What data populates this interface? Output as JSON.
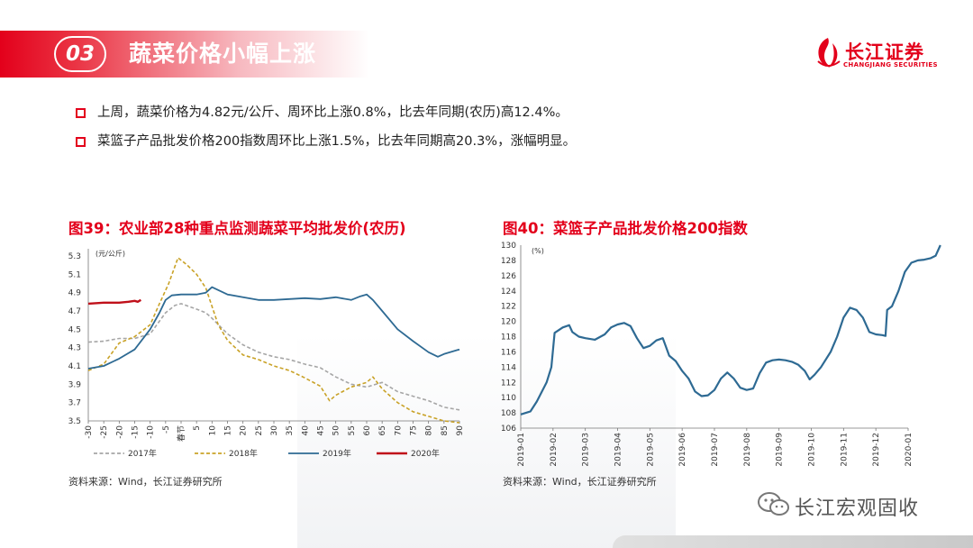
{
  "header": {
    "section_number": "03",
    "title": "蔬菜价格小幅上涨",
    "logo_cn": "长江证券",
    "logo_en": "CHANGJIANG SECURITIES"
  },
  "bullets": [
    "上周，蔬菜价格为4.82元/公斤、周环比上涨0.8%，比去年同期(农历)高12.4%。",
    "菜篮子产品批发价格200指数周环比上涨1.5%，比去年同期高20.3%，涨幅明显。"
  ],
  "figures": {
    "left": {
      "title": "图39：农业部28种重点监测蔬菜平均批发价(农历)",
      "source": "资料来源：Wind，长江证券研究所"
    },
    "right": {
      "title": "图40：菜篮子产品批发价格200指数",
      "source": "资料来源：Wind，长江证券研究所"
    }
  },
  "watermark": "长江宏观固收",
  "colors": {
    "brand_red": "#e3001b",
    "series_2017": "#a6a6a6",
    "series_2018": "#c9a227",
    "series_2019": "#2e6a93",
    "series_2020": "#c0101a"
  },
  "chart_data": [
    {
      "type": "line",
      "unit": "(元/公斤)",
      "ylim": [
        3.5,
        5.3
      ],
      "yticks": [
        3.5,
        3.7,
        3.9,
        4.1,
        4.3,
        4.5,
        4.7,
        4.9,
        5.1,
        5.3
      ],
      "xlim": [
        -30,
        90
      ],
      "xticks": [
        "-30",
        "-25",
        "-20",
        "-15",
        "-10",
        "-5",
        "春节",
        "5",
        "10",
        "15",
        "20",
        "25",
        "30",
        "35",
        "40",
        "45",
        "50",
        "55",
        "60",
        "65",
        "70",
        "75",
        "80",
        "85",
        "90"
      ],
      "legend": "bottom",
      "series": [
        {
          "name": "2017年",
          "style": "dashed",
          "points": [
            [
              -30,
              4.36
            ],
            [
              -25,
              4.37
            ],
            [
              -20,
              4.4
            ],
            [
              -15,
              4.4
            ],
            [
              -10,
              4.45
            ],
            [
              -5,
              4.68
            ],
            [
              -2,
              4.76
            ],
            [
              0,
              4.78
            ],
            [
              5,
              4.72
            ],
            [
              8,
              4.68
            ],
            [
              10,
              4.62
            ],
            [
              15,
              4.45
            ],
            [
              20,
              4.33
            ],
            [
              25,
              4.25
            ],
            [
              30,
              4.2
            ],
            [
              35,
              4.17
            ],
            [
              40,
              4.12
            ],
            [
              45,
              4.08
            ],
            [
              50,
              3.98
            ],
            [
              55,
              3.9
            ],
            [
              60,
              3.87
            ],
            [
              65,
              3.92
            ],
            [
              70,
              3.82
            ],
            [
              75,
              3.77
            ],
            [
              80,
              3.72
            ],
            [
              85,
              3.65
            ],
            [
              90,
              3.62
            ]
          ]
        },
        {
          "name": "2018年",
          "style": "dashed",
          "points": [
            [
              -30,
              4.05
            ],
            [
              -25,
              4.12
            ],
            [
              -20,
              4.35
            ],
            [
              -15,
              4.42
            ],
            [
              -10,
              4.55
            ],
            [
              -7,
              4.78
            ],
            [
              -4,
              5.0
            ],
            [
              -1,
              5.28
            ],
            [
              2,
              5.2
            ],
            [
              5,
              5.1
            ],
            [
              8,
              4.95
            ],
            [
              10,
              4.75
            ],
            [
              12,
              4.55
            ],
            [
              15,
              4.38
            ],
            [
              20,
              4.22
            ],
            [
              25,
              4.17
            ],
            [
              30,
              4.1
            ],
            [
              35,
              4.05
            ],
            [
              40,
              3.97
            ],
            [
              45,
              3.88
            ],
            [
              48,
              3.72
            ],
            [
              50,
              3.78
            ],
            [
              55,
              3.87
            ],
            [
              60,
              3.92
            ],
            [
              62,
              3.98
            ],
            [
              65,
              3.85
            ],
            [
              70,
              3.7
            ],
            [
              75,
              3.6
            ],
            [
              80,
              3.55
            ],
            [
              85,
              3.5
            ],
            [
              90,
              3.48
            ]
          ]
        },
        {
          "name": "2019年",
          "style": "solid",
          "points": [
            [
              -30,
              4.07
            ],
            [
              -25,
              4.1
            ],
            [
              -20,
              4.18
            ],
            [
              -15,
              4.28
            ],
            [
              -10,
              4.5
            ],
            [
              -7,
              4.68
            ],
            [
              -5,
              4.82
            ],
            [
              -3,
              4.87
            ],
            [
              0,
              4.88
            ],
            [
              5,
              4.88
            ],
            [
              8,
              4.9
            ],
            [
              10,
              4.96
            ],
            [
              15,
              4.88
            ],
            [
              20,
              4.85
            ],
            [
              25,
              4.82
            ],
            [
              30,
              4.82
            ],
            [
              35,
              4.83
            ],
            [
              40,
              4.84
            ],
            [
              45,
              4.83
            ],
            [
              50,
              4.85
            ],
            [
              55,
              4.82
            ],
            [
              58,
              4.86
            ],
            [
              60,
              4.88
            ],
            [
              62,
              4.82
            ],
            [
              65,
              4.7
            ],
            [
              70,
              4.5
            ],
            [
              75,
              4.37
            ],
            [
              80,
              4.25
            ],
            [
              83,
              4.2
            ],
            [
              85,
              4.23
            ],
            [
              90,
              4.28
            ]
          ]
        },
        {
          "name": "2020年",
          "style": "solid",
          "points": [
            [
              -30,
              4.78
            ],
            [
              -25,
              4.79
            ],
            [
              -20,
              4.79
            ],
            [
              -17,
              4.8
            ],
            [
              -15,
              4.81
            ],
            [
              -14,
              4.8
            ],
            [
              -13,
              4.82
            ]
          ]
        }
      ]
    },
    {
      "type": "line",
      "unit": "(%)",
      "ylim": [
        106,
        130
      ],
      "yticks": [
        106,
        108,
        110,
        112,
        114,
        116,
        118,
        120,
        122,
        124,
        126,
        128,
        130
      ],
      "xticks": [
        "2019-01",
        "2019-02",
        "2019-03",
        "2019-04",
        "2019-05",
        "2019-06",
        "2019-07",
        "2019-08",
        "2019-09",
        "2019-10",
        "2019-11",
        "2019-12",
        "2020-01"
      ],
      "series": [
        {
          "name": "菜篮子产品批发价格200指数",
          "points": [
            [
              0,
              107.8
            ],
            [
              0.3,
              108.2
            ],
            [
              0.5,
              109.5
            ],
            [
              0.8,
              112
            ],
            [
              0.95,
              114
            ],
            [
              1.05,
              118.5
            ],
            [
              1.3,
              119.2
            ],
            [
              1.5,
              119.5
            ],
            [
              1.6,
              118.6
            ],
            [
              1.8,
              118
            ],
            [
              2,
              117.8
            ],
            [
              2.3,
              117.6
            ],
            [
              2.6,
              118.3
            ],
            [
              2.8,
              119.2
            ],
            [
              3,
              119.6
            ],
            [
              3.2,
              119.8
            ],
            [
              3.4,
              119.4
            ],
            [
              3.6,
              117.8
            ],
            [
              3.8,
              116.5
            ],
            [
              4,
              116.8
            ],
            [
              4.2,
              117.5
            ],
            [
              4.4,
              117.8
            ],
            [
              4.6,
              115.5
            ],
            [
              4.8,
              114.8
            ],
            [
              5,
              113.5
            ],
            [
              5.2,
              112.5
            ],
            [
              5.4,
              110.8
            ],
            [
              5.6,
              110.2
            ],
            [
              5.8,
              110.3
            ],
            [
              6,
              111
            ],
            [
              6.2,
              112.5
            ],
            [
              6.4,
              113.3
            ],
            [
              6.6,
              112.5
            ],
            [
              6.8,
              111.3
            ],
            [
              7,
              111
            ],
            [
              7.2,
              111.2
            ],
            [
              7.4,
              113.2
            ],
            [
              7.6,
              114.6
            ],
            [
              7.8,
              114.9
            ],
            [
              8,
              115
            ],
            [
              8.2,
              114.9
            ],
            [
              8.4,
              114.7
            ],
            [
              8.6,
              114.3
            ],
            [
              8.8,
              113.5
            ],
            [
              8.95,
              112.4
            ],
            [
              9.1,
              113
            ],
            [
              9.3,
              114
            ],
            [
              9.6,
              116
            ],
            [
              9.8,
              118
            ],
            [
              10,
              120.5
            ],
            [
              10.2,
              121.8
            ],
            [
              10.4,
              121.5
            ],
            [
              10.6,
              120.5
            ],
            [
              10.8,
              118.6
            ],
            [
              11,
              118.3
            ],
            [
              11.2,
              118.2
            ],
            [
              11.3,
              118.1
            ],
            [
              11.35,
              121.5
            ],
            [
              11.5,
              122
            ],
            [
              11.7,
              124
            ],
            [
              11.9,
              126.5
            ],
            [
              12.1,
              127.7
            ],
            [
              12.3,
              128
            ],
            [
              12.5,
              128.1
            ],
            [
              12.7,
              128.3
            ],
            [
              12.85,
              128.6
            ],
            [
              13,
              130
            ]
          ]
        }
      ]
    }
  ]
}
